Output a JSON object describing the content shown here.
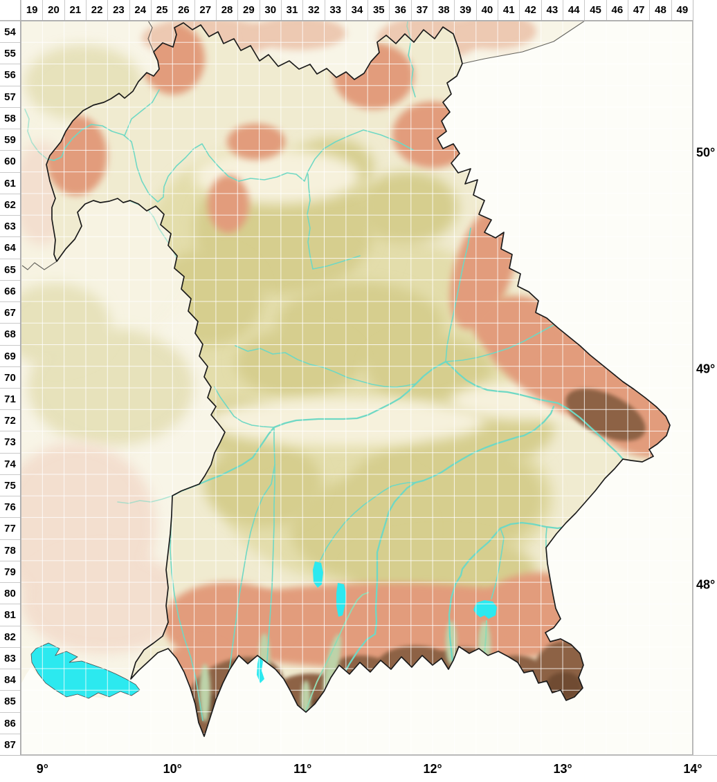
{
  "grid": {
    "corner": "",
    "columns": [
      "19",
      "20",
      "21",
      "22",
      "23",
      "24",
      "25",
      "26",
      "27",
      "28",
      "29",
      "30",
      "31",
      "32",
      "33",
      "34",
      "35",
      "36",
      "37",
      "38",
      "39",
      "40",
      "41",
      "42",
      "43",
      "44",
      "45",
      "46",
      "47",
      "48",
      "49"
    ],
    "rows": [
      "54",
      "55",
      "56",
      "57",
      "58",
      "59",
      "60",
      "61",
      "62",
      "63",
      "64",
      "65",
      "66",
      "67",
      "68",
      "69",
      "70",
      "71",
      "72",
      "73",
      "74",
      "75",
      "76",
      "77",
      "78",
      "79",
      "80",
      "81",
      "82",
      "83",
      "84",
      "85",
      "86",
      "87"
    ]
  },
  "geo_labels": {
    "longitude": [
      "9°",
      "10°",
      "11°",
      "12°",
      "13°",
      "14°"
    ],
    "latitude": [
      "50°",
      "49°",
      "48°"
    ]
  },
  "palette": {
    "outside_base": "#f8f5e7",
    "whiteout": "#fdfdf8",
    "bavaria_base": "#f0ebd0",
    "khaki": "#d6ce8e",
    "khaki_light": "#e3ddab",
    "cream_hi": "#f6f1dc",
    "salmon": "#e29c7c",
    "pink_washed": "#efc8b6",
    "brown": "#8d6245",
    "brown_dark": "#6f4c33",
    "valley_green": "#bdd3a9",
    "river": "#6fd8c4",
    "river_alpine": "#93d9b2",
    "lake": "#2ce9ef",
    "boundary": "#1a1a1a",
    "boundary_neighbor": "#3c3c38",
    "grid_line": "rgba(255,255,255,0.82)"
  }
}
